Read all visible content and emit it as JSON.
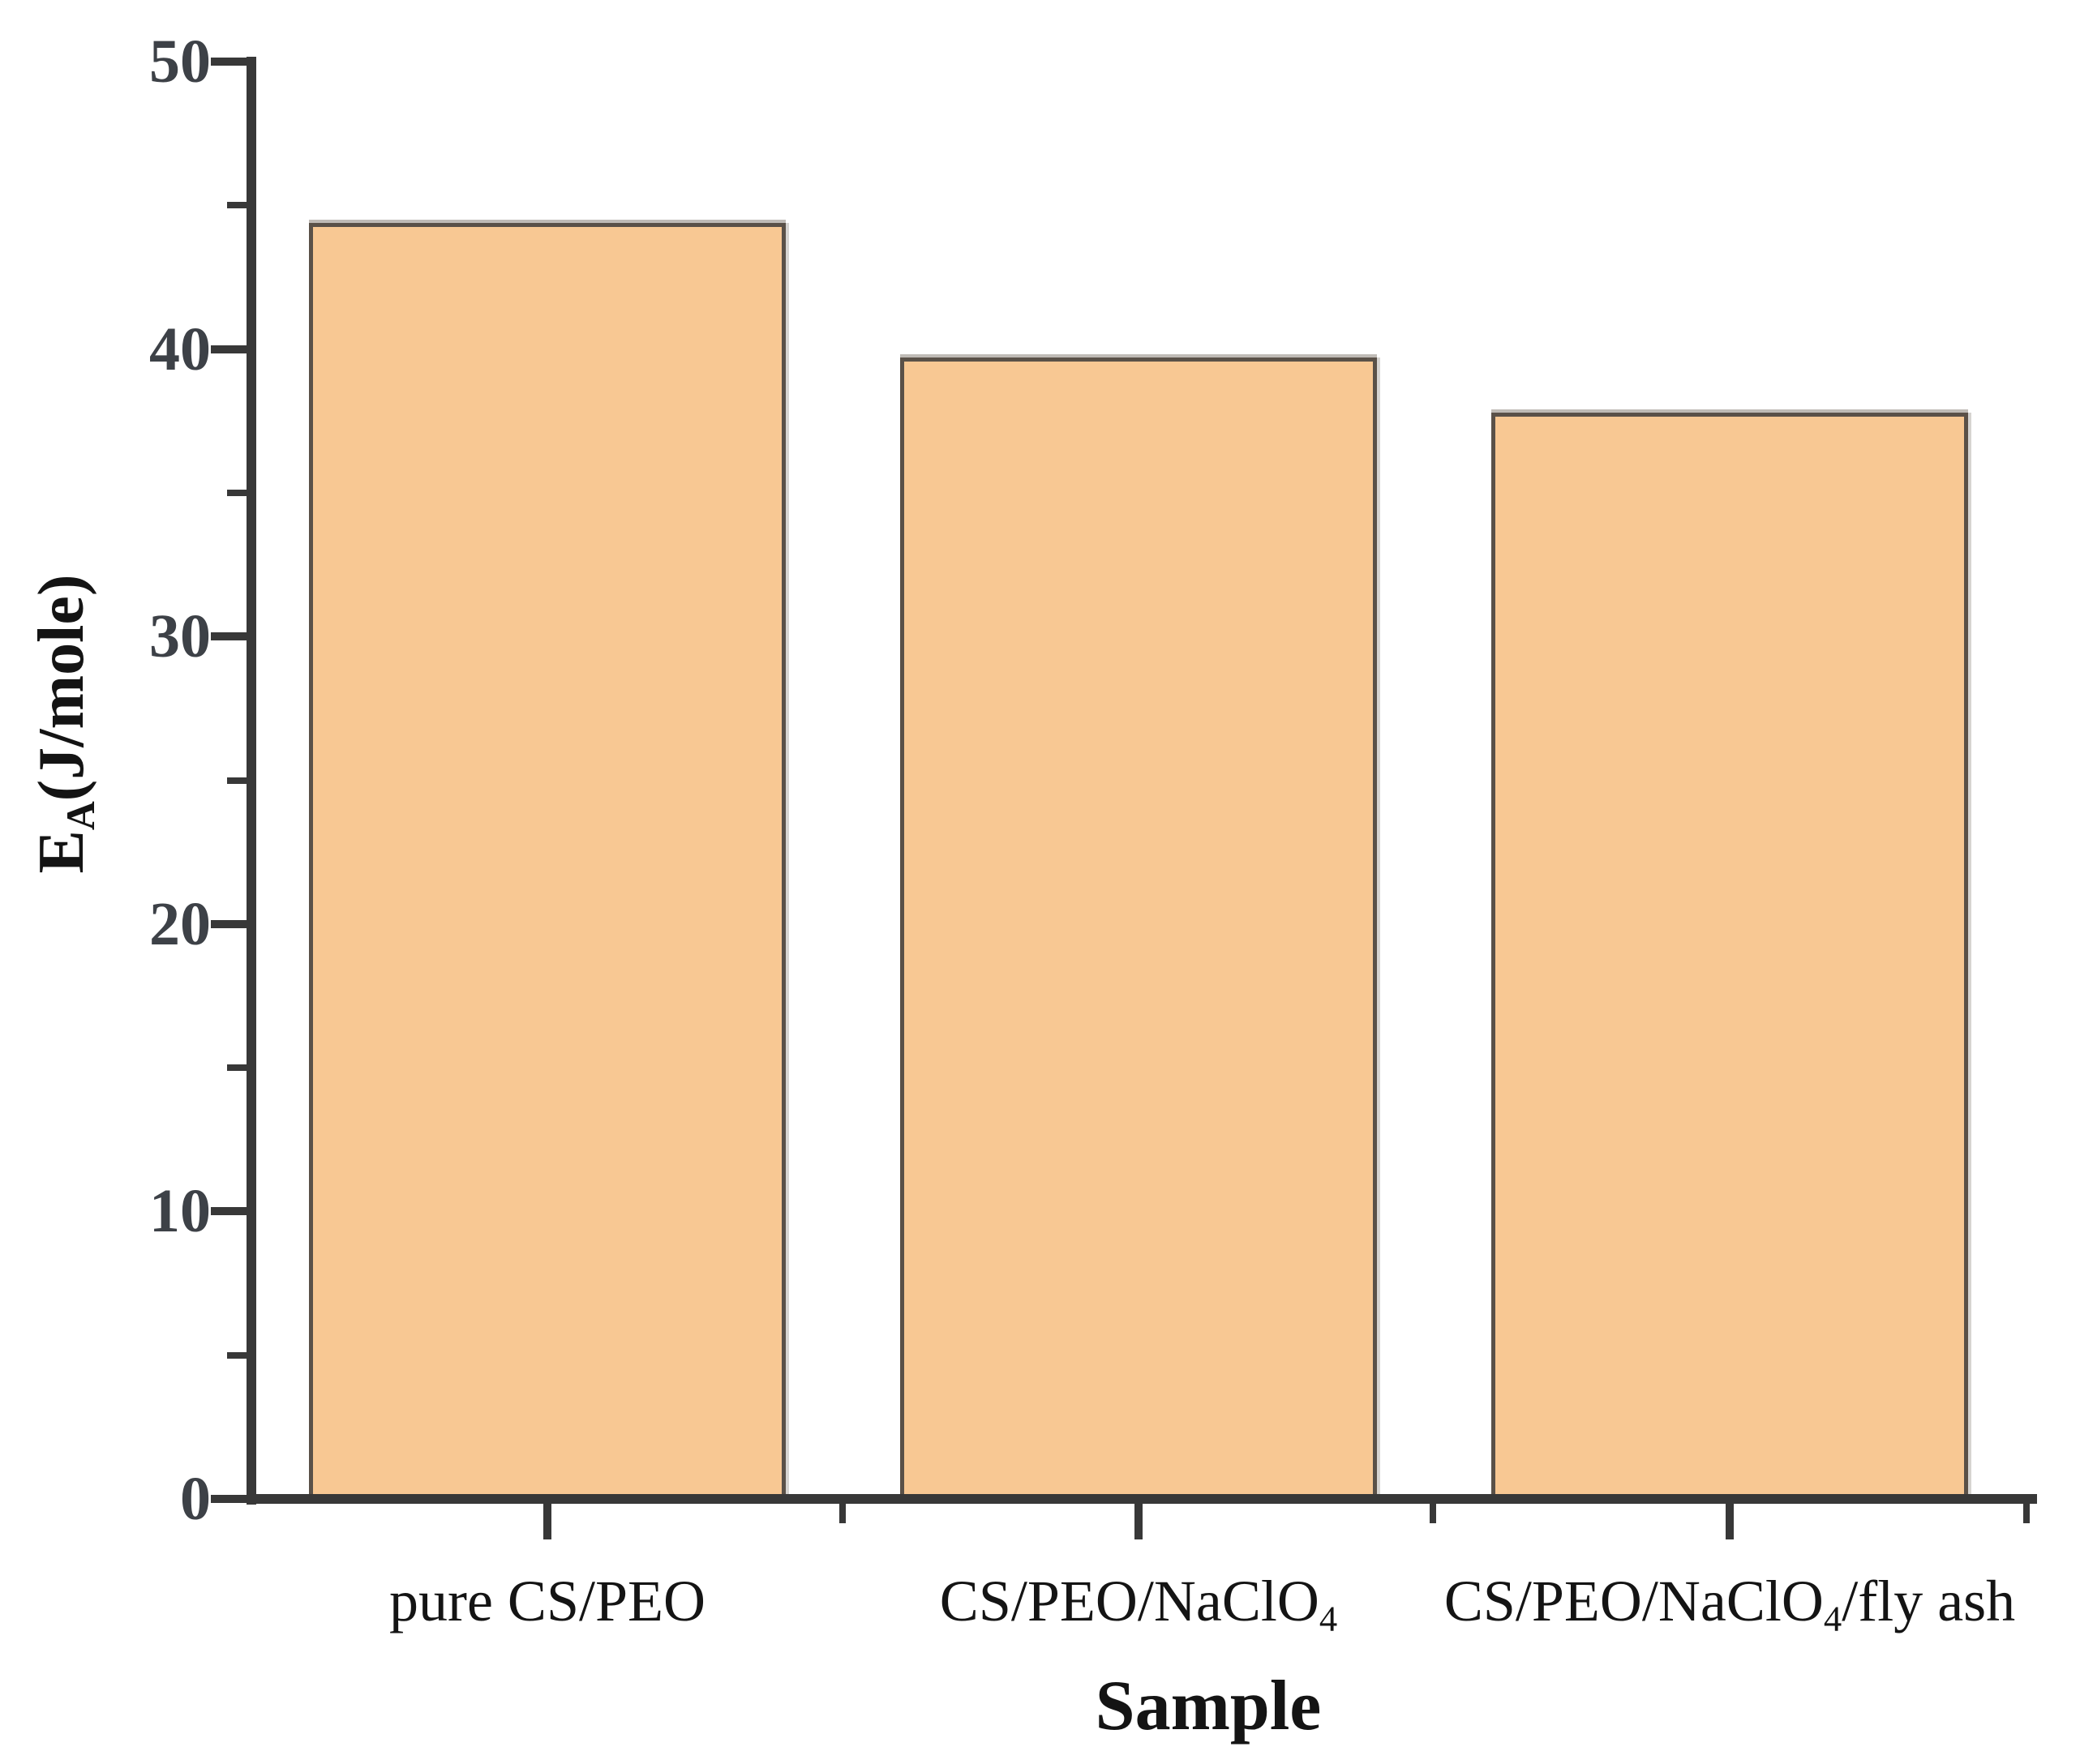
{
  "figure": {
    "background": "#ffffff"
  },
  "chart_data": {
    "type": "bar",
    "title": "",
    "xlabel": "Sample",
    "ylabel": "E_A(J/mole)",
    "ylabel_parts": [
      {
        "t": "E"
      },
      {
        "t": "A",
        "sub": true
      },
      {
        "t": "(J/mole)"
      }
    ],
    "categories_text": [
      "pure CS/PEO",
      "CS/PEO/NaClO4",
      "CS/PEO/NaClO4/fly ash"
    ],
    "categories": [
      {
        "parts": [
          {
            "t": "pure CS/PEO"
          }
        ]
      },
      {
        "parts": [
          {
            "t": "CS/PEO/NaClO"
          },
          {
            "t": "4",
            "sub": true
          }
        ]
      },
      {
        "parts": [
          {
            "t": "CS/PEO/NaClO"
          },
          {
            "t": "4",
            "sub": true
          },
          {
            "t": "/fly ash"
          }
        ]
      }
    ],
    "values": [
      44.4,
      39.7,
      37.8
    ],
    "ylim": [
      0,
      50
    ],
    "ytick_step": 10,
    "yminor_step": 5,
    "ytick_labels": [
      "0",
      "10",
      "20",
      "30",
      "40",
      "50"
    ],
    "grid": false,
    "legend": "none",
    "bar_fill": "#f8c893",
    "bar_border": "#5a5148",
    "axis_color": "#383838",
    "ytick_label_color": "#3d4147",
    "text_color": "#141414"
  }
}
